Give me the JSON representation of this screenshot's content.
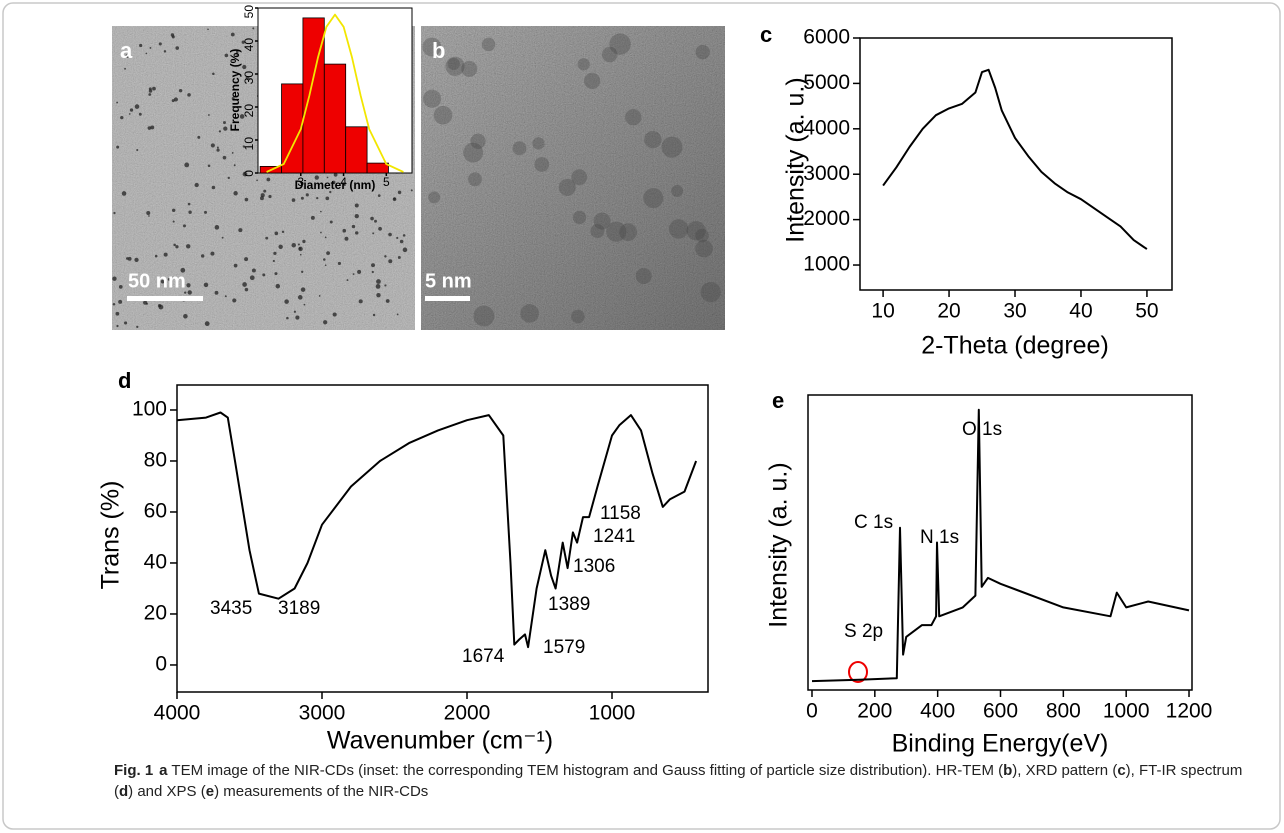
{
  "images": [
    {
      "label": "a",
      "scale_bar": "50 nm"
    },
    {
      "label": "b",
      "scale_bar": "5 nm"
    }
  ],
  "chart_data": [
    {
      "type": "histogram",
      "x_label": "Diameter (nm)",
      "y_label": "Frequency (%)",
      "bins": [
        2.05,
        2.55,
        3.05,
        3.55,
        4.05,
        4.55,
        5.05
      ],
      "values": [
        2,
        27,
        47,
        33,
        14,
        3
      ],
      "color": "#ee0000",
      "fit": {
        "x": [
          2.2,
          2.6,
          3.0,
          3.2,
          3.4,
          3.6,
          3.8,
          4.0,
          4.2,
          4.4,
          4.6,
          5.0,
          5.4
        ],
        "values": [
          0.3,
          2.7,
          13.3,
          23.4,
          34.9,
          44.3,
          48,
          44.3,
          34.9,
          23.4,
          13.3,
          2.7,
          0.3
        ],
        "color": "#f2e600"
      },
      "xlim": [
        2,
        5.6
      ],
      "ylim": [
        0,
        50
      ],
      "xticks": [
        3,
        4,
        5
      ],
      "yticks": [
        0,
        10,
        20,
        30,
        40,
        50
      ]
    },
    {
      "type": "line",
      "panel_label": "c",
      "x_label": "2-Theta (degree)",
      "y_label": "Intensity (a. u.)",
      "color": "#000000",
      "x": [
        10,
        12,
        14,
        16,
        18,
        20,
        22,
        24,
        25,
        26,
        27,
        28,
        30,
        32,
        34,
        36,
        38,
        40,
        42,
        44,
        46,
        48,
        50
      ],
      "values": [
        2750,
        3150,
        3600,
        4000,
        4300,
        4450,
        4550,
        4800,
        5250,
        5300,
        4900,
        4400,
        3800,
        3400,
        3050,
        2800,
        2600,
        2450,
        2250,
        2050,
        1850,
        1550,
        1350
      ],
      "xlim": [
        6.5,
        53.8
      ],
      "ylim": [
        450,
        6000
      ],
      "xticks": [
        10,
        20,
        30,
        40,
        50
      ],
      "yticks": [
        1000,
        2000,
        3000,
        4000,
        5000,
        6000
      ]
    },
    {
      "type": "line",
      "panel_label": "d",
      "x_label": "Wavenumber (cm⁻¹)",
      "y_label": "Trans (%)",
      "color": "#000000",
      "x": [
        4000,
        3800,
        3700,
        3650,
        3600,
        3500,
        3435,
        3300,
        3189,
        3100,
        3000,
        2800,
        2600,
        2400,
        2200,
        2000,
        1850,
        1750,
        1700,
        1674,
        1640,
        1600,
        1579,
        1520,
        1460,
        1420,
        1389,
        1340,
        1306,
        1270,
        1241,
        1200,
        1158,
        1100,
        1000,
        950,
        870,
        800,
        720,
        650,
        600,
        500,
        420
      ],
      "values": [
        96,
        97,
        99,
        97,
        80,
        45,
        28,
        26,
        30,
        40,
        55,
        70,
        80,
        87,
        92,
        96,
        98,
        90,
        40,
        8,
        10,
        12,
        7,
        30,
        45,
        35,
        30,
        48,
        38,
        52,
        48,
        58,
        58,
        70,
        90,
        94,
        98,
        92,
        75,
        62,
        65,
        68,
        80
      ],
      "annotations": [
        "3435",
        "3189",
        "1674",
        "1579",
        "1389",
        "1306",
        "1241",
        "1158"
      ],
      "xlim": [
        4000,
        338
      ],
      "ylim": [
        -10.6,
        109.8
      ],
      "xticks": [
        4000,
        3000,
        2000,
        1000
      ],
      "yticks": [
        0,
        20,
        40,
        60,
        80,
        100
      ]
    },
    {
      "type": "line",
      "panel_label": "e",
      "x_label": "Binding Energy(eV)",
      "y_label": "Intensity  (a. u.)",
      "color": "#000000",
      "x": [
        0,
        150,
        270,
        280,
        290,
        300,
        350,
        380,
        395,
        398,
        405,
        480,
        500,
        520,
        531,
        540,
        560,
        600,
        800,
        950,
        970,
        1000,
        1070,
        1200
      ],
      "values": [
        3,
        3.5,
        4,
        55,
        12,
        18,
        22,
        22,
        25,
        50,
        25,
        28,
        30,
        32,
        95,
        35,
        38,
        36,
        28,
        25,
        33,
        28,
        30,
        27
      ],
      "annotations": [
        "O 1s",
        "C 1s",
        "N 1s",
        "S 2p"
      ],
      "xlim": [
        -12.7,
        1209.5
      ],
      "ylim": [
        0,
        100
      ],
      "xticks": [
        0,
        200,
        400,
        600,
        800,
        1000,
        1200
      ]
    }
  ],
  "caption": [
    {
      "text": "Fig. 1",
      "bold": true
    },
    {
      "text": "a",
      "bold": true
    },
    {
      "text": " TEM image of the NIR-CDs (inset: the corresponding TEM histogram and Gauss fitting of particle size distribution). HR-TEM (",
      "bold": false
    },
    {
      "text": "b",
      "bold": true
    },
    {
      "text": "), XRD pattern (",
      "bold": false
    },
    {
      "text": "c",
      "bold": true
    },
    {
      "text": "), FT-IR spectrum (",
      "bold": false
    },
    {
      "text": "d",
      "bold": true
    },
    {
      "text": ") and XPS (",
      "bold": false
    },
    {
      "text": "e",
      "bold": true
    },
    {
      "text": ") measurements of the NIR-CDs",
      "bold": false
    }
  ]
}
